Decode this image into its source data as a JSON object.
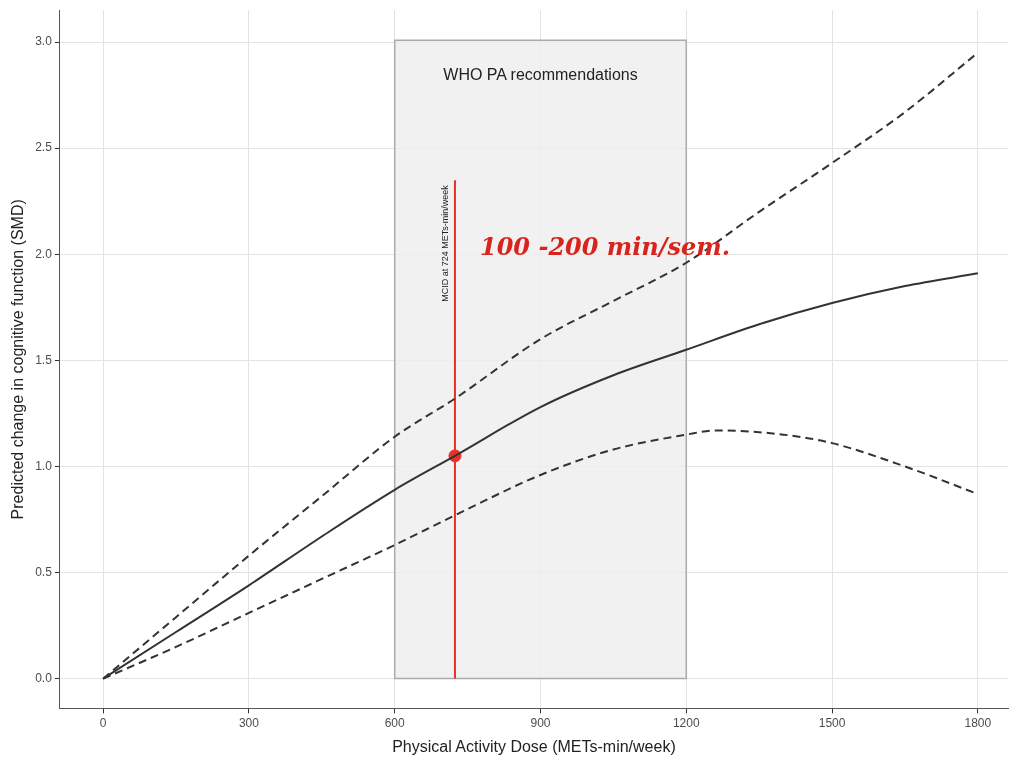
{
  "chart_data": {
    "type": "line",
    "xlabel": "Physical Activity Dose (METs-min/week)",
    "ylabel": "Predicted change in cognitive function (SMD)",
    "xlim": [
      -89,
      1862
    ],
    "ylim": [
      -0.14,
      3.15
    ],
    "xticks": [
      0,
      300,
      600,
      900,
      1200,
      1500,
      1800
    ],
    "yticks": [
      {
        "value": 0,
        "label": "0.0"
      },
      0.5,
      {
        "value": 1,
        "label": "1.0"
      },
      1.5,
      {
        "value": 2,
        "label": "2.0"
      },
      2.5,
      {
        "value": 3,
        "label": "3.0"
      }
    ],
    "grid": true,
    "legend": false,
    "marker": "none",
    "series": [
      {
        "color": "#333333",
        "line_style": "solid",
        "x": [
          0,
          150,
          300,
          450,
          600,
          724,
          900,
          1050,
          1200,
          1350,
          1500,
          1650,
          1800
        ],
        "values": [
          0,
          0.22,
          0.44,
          0.67,
          0.89,
          1.05,
          1.28,
          1.43,
          1.55,
          1.67,
          1.77,
          1.85,
          1.91
        ]
      },
      {
        "color": "#333333",
        "line_style": "dashed",
        "x": [
          0,
          150,
          300,
          450,
          600,
          724,
          900,
          1050,
          1200,
          1350,
          1500,
          1650,
          1800
        ],
        "values": [
          0,
          0.29,
          0.58,
          0.86,
          1.14,
          1.32,
          1.6,
          1.78,
          1.96,
          2.2,
          2.43,
          2.67,
          2.95
        ]
      },
      {
        "color": "#333333",
        "line_style": "dashed",
        "x": [
          0,
          150,
          300,
          450,
          600,
          724,
          900,
          1050,
          1200,
          1260,
          1400,
          1500,
          1650,
          1800
        ],
        "values": [
          0,
          0.15,
          0.31,
          0.47,
          0.63,
          0.77,
          0.96,
          1.08,
          1.15,
          1.17,
          1.15,
          1.11,
          1.0,
          0.87
        ]
      },
      {
        "type": "scatter",
        "marker": "circle",
        "color": "#e8312a",
        "x": [
          724
        ],
        "values": [
          1.05
        ]
      }
    ],
    "bands": [
      {
        "axis": "x",
        "from": 600,
        "to": 1200,
        "label": "WHO PA recommendations",
        "color": "#ededed"
      }
    ],
    "ref_lines": [
      {
        "axis": "x",
        "value": 724,
        "label": "MCID at 724 METs-min/week",
        "color": "#e8312a"
      }
    ],
    "annotations": [
      "100 -200 min/sem."
    ]
  }
}
